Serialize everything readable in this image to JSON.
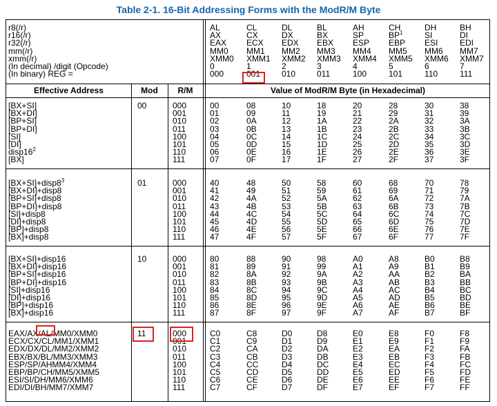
{
  "title": "Table 2-1.  16-Bit Addressing Forms with the ModR/M Byte",
  "header": {
    "row_labels": [
      "r8(/r)",
      "r16(/r)",
      "r32(/r)",
      "mm(/r)",
      "xmm(/r)",
      "(In decimal) /digit (Opcode)",
      "(In binary) REG ="
    ],
    "columns": [
      [
        "AL",
        "AX",
        "EAX",
        "MM0",
        "XMM0",
        "0",
        "000"
      ],
      [
        "CL",
        "CX",
        "ECX",
        "MM1",
        "XMM1",
        "1",
        "001"
      ],
      [
        "DL",
        "DX",
        "EDX",
        "MM2",
        "XMM2",
        "2",
        "010"
      ],
      [
        "BL",
        "BX",
        "EBX",
        "MM3",
        "XMM3",
        "3",
        "011"
      ],
      [
        "AH",
        "SP",
        "ESP",
        "MM4",
        "XMM4",
        "4",
        "100"
      ],
      [
        "CH",
        "BP",
        "EBP",
        "MM5",
        "XMM5",
        "5",
        "101"
      ],
      [
        "DH",
        "SI",
        "ESI",
        "MM6",
        "XMM6",
        "6",
        "110"
      ],
      [
        "BH",
        "DI",
        "EDI",
        "MM7",
        "XMM7",
        "7",
        "111"
      ]
    ],
    "col5_bp_sup": "1",
    "ea_label": "Effective Address",
    "mod_label": "Mod",
    "rm_label": "R/M",
    "value_label": "Value of ModR/M Byte (in Hexadecimal)"
  },
  "groups": [
    {
      "ea": [
        "[BX+SI]",
        "[BX+DI]",
        "[BP+SI]",
        "[BP+DI]",
        "[SI]",
        "[DI]",
        "disp16",
        "[BX]"
      ],
      "ea_sups": {
        "6": "2"
      },
      "mod": "00",
      "rm": [
        "000",
        "001",
        "010",
        "011",
        "100",
        "101",
        "110",
        "111"
      ],
      "values": [
        [
          "00",
          "08",
          "10",
          "18",
          "20",
          "28",
          "30",
          "38"
        ],
        [
          "01",
          "09",
          "11",
          "19",
          "21",
          "29",
          "31",
          "39"
        ],
        [
          "02",
          "0A",
          "12",
          "1A",
          "22",
          "2A",
          "32",
          "3A"
        ],
        [
          "03",
          "0B",
          "13",
          "1B",
          "23",
          "2B",
          "33",
          "3B"
        ],
        [
          "04",
          "0C",
          "14",
          "1C",
          "24",
          "2C",
          "34",
          "3C"
        ],
        [
          "05",
          "0D",
          "15",
          "1D",
          "25",
          "2D",
          "35",
          "3D"
        ],
        [
          "06",
          "0E",
          "16",
          "1E",
          "26",
          "2E",
          "36",
          "3E"
        ],
        [
          "07",
          "0F",
          "17",
          "1F",
          "27",
          "2F",
          "37",
          "3F"
        ]
      ]
    },
    {
      "ea": [
        "[BX+SI]+disp8",
        "[BX+DI]+disp8",
        "[BP+SI]+disp8",
        "[BP+DI]+disp8",
        "[SI]+disp8",
        "[DI]+disp8",
        "[BP]+disp8",
        "[BX]+disp8"
      ],
      "ea_sups": {
        "0": "3"
      },
      "mod": "01",
      "rm": [
        "000",
        "001",
        "010",
        "011",
        "100",
        "101",
        "110",
        "111"
      ],
      "values": [
        [
          "40",
          "48",
          "50",
          "58",
          "60",
          "68",
          "70",
          "78"
        ],
        [
          "41",
          "49",
          "51",
          "59",
          "61",
          "69",
          "71",
          "79"
        ],
        [
          "42",
          "4A",
          "52",
          "5A",
          "62",
          "6A",
          "72",
          "7A"
        ],
        [
          "43",
          "4B",
          "53",
          "5B",
          "63",
          "6B",
          "73",
          "7B"
        ],
        [
          "44",
          "4C",
          "54",
          "5C",
          "64",
          "6C",
          "74",
          "7C"
        ],
        [
          "45",
          "4D",
          "55",
          "5D",
          "65",
          "6D",
          "75",
          "7D"
        ],
        [
          "46",
          "4E",
          "56",
          "5E",
          "66",
          "6E",
          "76",
          "7E"
        ],
        [
          "47",
          "4F",
          "57",
          "5F",
          "67",
          "6F",
          "77",
          "7F"
        ]
      ]
    },
    {
      "ea": [
        "[BX+SI]+disp16",
        "[BX+DI]+disp16",
        "[BP+SI]+disp16",
        "[BP+DI]+disp16",
        "[SI]+disp16",
        "[DI]+disp16",
        "[BP]+disp16",
        "[BX]+disp16"
      ],
      "ea_sups": {},
      "mod": "10",
      "rm": [
        "000",
        "001",
        "010",
        "011",
        "100",
        "101",
        "110",
        "111"
      ],
      "values": [
        [
          "80",
          "88",
          "90",
          "98",
          "A0",
          "A8",
          "B0",
          "B8"
        ],
        [
          "81",
          "89",
          "91",
          "99",
          "A1",
          "A9",
          "B1",
          "B9"
        ],
        [
          "82",
          "8A",
          "92",
          "9A",
          "A2",
          "AA",
          "B2",
          "BA"
        ],
        [
          "83",
          "8B",
          "93",
          "9B",
          "A3",
          "AB",
          "B3",
          "BB"
        ],
        [
          "84",
          "8C",
          "94",
          "9C",
          "A4",
          "AC",
          "B4",
          "BC"
        ],
        [
          "85",
          "8D",
          "95",
          "9D",
          "A5",
          "AD",
          "B5",
          "BD"
        ],
        [
          "86",
          "8E",
          "96",
          "9E",
          "A6",
          "AE",
          "B6",
          "BE"
        ],
        [
          "87",
          "8F",
          "97",
          "9F",
          "A7",
          "AF",
          "B7",
          "BF"
        ]
      ]
    },
    {
      "ea": [
        "EAX/AX/AL/MM0/XMM0",
        "ECX/CX/CL/MM1/XMM1",
        "EDX/DX/DL/MM2/XMM2",
        "EBX/BX/BL/MM3/XMM3",
        "ESP/SP/AHMM4/XMM4",
        "EBP/BP/CH/MM5/XMM5",
        "ESI/SI/DH/MM6/XMM6",
        "EDI/DI/BH/MM7/XMM7"
      ],
      "ea_sups": {},
      "mod": "11",
      "rm": [
        "000",
        "001",
        "010",
        "011",
        "100",
        "101",
        "110",
        "111"
      ],
      "values": [
        [
          "C0",
          "C8",
          "D0",
          "D8",
          "E0",
          "E8",
          "F0",
          "F8"
        ],
        [
          "C1",
          "C9",
          "D1",
          "D9",
          "E1",
          "E9",
          "F1",
          "F9"
        ],
        [
          "C2",
          "CA",
          "D2",
          "DA",
          "E2",
          "EA",
          "F2",
          "FA"
        ],
        [
          "C3",
          "CB",
          "D3",
          "DB",
          "E3",
          "EB",
          "F3",
          "FB"
        ],
        [
          "C4",
          "CC",
          "D4",
          "DC",
          "E4",
          "EC",
          "F4",
          "FC"
        ],
        [
          "C5",
          "CD",
          "D5",
          "DD",
          "E5",
          "ED",
          "F5",
          "FD"
        ],
        [
          "C6",
          "CE",
          "D6",
          "DE",
          "E6",
          "EE",
          "F6",
          "FE"
        ],
        [
          "C7",
          "CF",
          "D7",
          "DF",
          "E7",
          "EF",
          "F7",
          "FF"
        ]
      ]
    }
  ],
  "highlight_color": "#e0201b",
  "title_color": "#1565a8"
}
